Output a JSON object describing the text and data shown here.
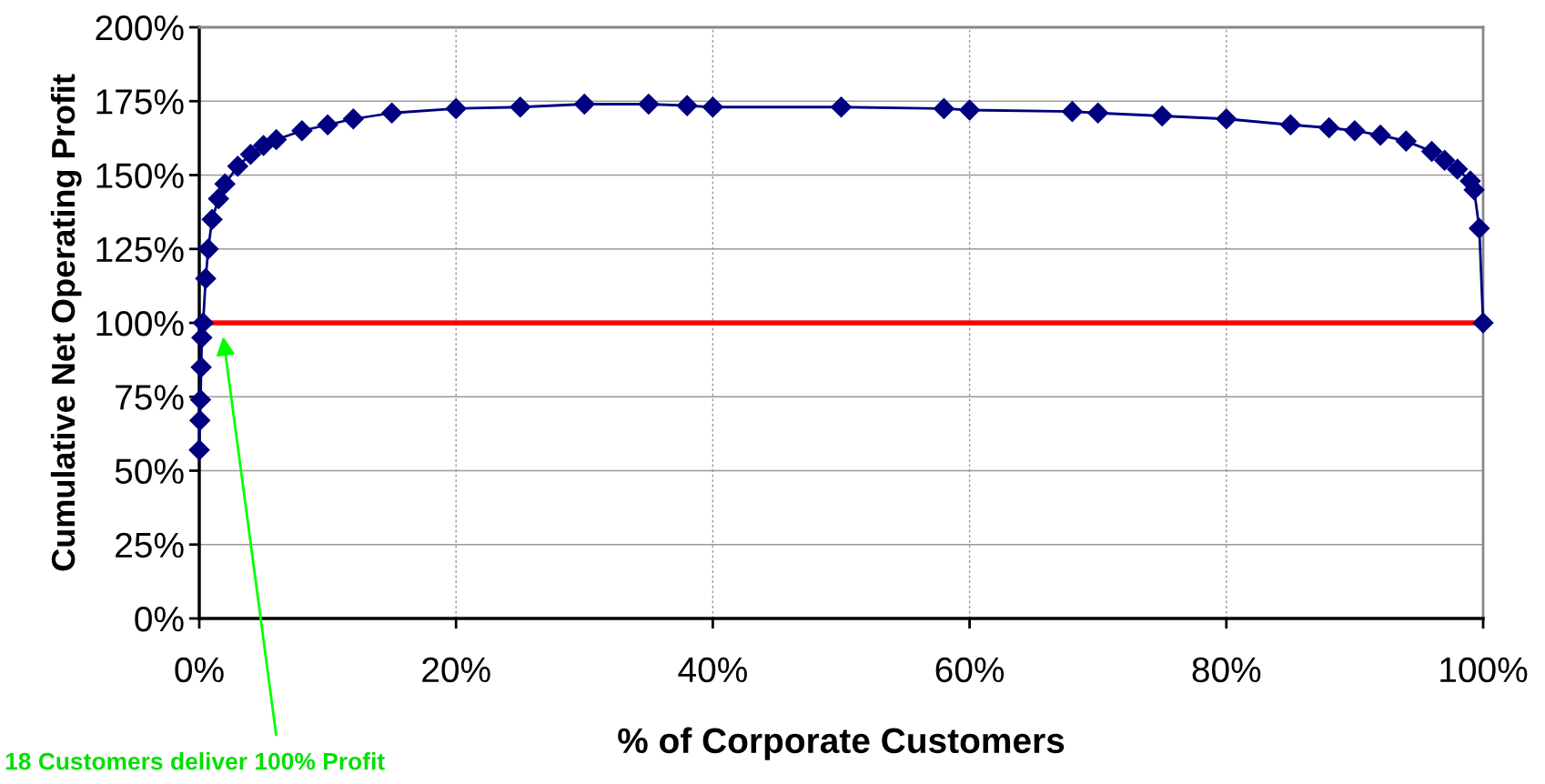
{
  "chart_data": {
    "type": "line",
    "xlabel": "% of Corporate Customers",
    "ylabel": "Cumulative Net Operating Profit",
    "x": [
      0,
      0.05,
      0.1,
      0.15,
      0.2,
      0.3,
      0.5,
      0.7,
      1,
      1.5,
      2,
      3,
      4,
      5,
      6,
      8,
      10,
      12,
      15,
      20,
      25,
      30,
      35,
      38,
      40,
      50,
      58,
      60,
      68,
      70,
      75,
      80,
      85,
      88,
      90,
      92,
      94,
      96,
      97,
      98,
      99,
      99.3,
      99.7,
      100
    ],
    "series": [
      {
        "color": "#000080",
        "values": [
          57,
          67,
          74,
          85,
          95,
          100,
          115,
          125,
          135,
          142,
          147,
          153,
          157,
          160,
          162,
          165,
          167,
          169,
          171,
          172.5,
          173,
          174,
          174,
          173.5,
          173,
          173,
          172.5,
          172,
          171.5,
          171,
          170,
          169,
          167,
          166,
          165,
          163.5,
          161.5,
          158,
          155,
          152,
          148,
          145,
          132,
          100
        ]
      }
    ],
    "marker": "diamond",
    "xlim": [
      0,
      100
    ],
    "ylim": [
      0,
      200
    ],
    "xticks": [
      {
        "value": 0,
        "label": "0%"
      },
      {
        "value": 20,
        "label": "20%"
      },
      {
        "value": 40,
        "label": "40%"
      },
      {
        "value": 60,
        "label": "60%"
      },
      {
        "value": 80,
        "label": "80%"
      },
      {
        "value": 100,
        "label": "100%"
      }
    ],
    "yticks": [
      {
        "value": 0,
        "label": "0%"
      },
      {
        "value": 25,
        "label": "25%"
      },
      {
        "value": 50,
        "label": "50%"
      },
      {
        "value": 75,
        "label": "75%"
      },
      {
        "value": 100,
        "label": "100%"
      },
      {
        "value": 125,
        "label": "125%"
      },
      {
        "value": 150,
        "label": "150%"
      },
      {
        "value": 175,
        "label": "175%"
      },
      {
        "value": 200,
        "label": "200%"
      }
    ],
    "ref_lines": [
      {
        "axis": "y",
        "value": 100,
        "color": "#ff0000"
      }
    ],
    "grid": true,
    "annotations": [
      "18 Customers deliver 100% Profit"
    ]
  }
}
